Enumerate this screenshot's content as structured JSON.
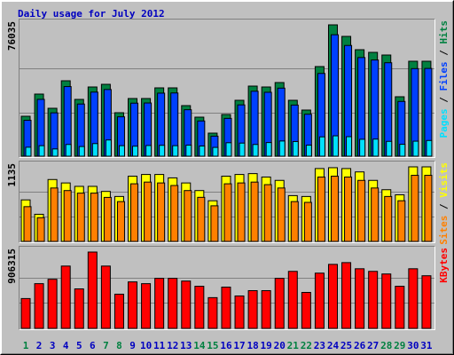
{
  "title": "Daily usage for July 2012",
  "legend_separator": "/",
  "chart_data": [
    {
      "type": "bar",
      "ylim": [
        0,
        76035
      ],
      "yticks": [
        76035
      ],
      "series": [
        {
          "name": "Hits",
          "color": "#008040",
          "values": [
            23118,
            35963,
            27743,
            43669,
            32880,
            40073,
            41614,
            25174,
            33394,
            33394,
            39559,
            39559,
            29284,
            22605,
            13358,
            24147,
            32366,
            40587,
            40073,
            42642,
            32366,
            26715,
            51890,
            76035,
            69357,
            61651,
            60110,
            58569,
            34422,
            54972,
            54972
          ]
        },
        {
          "name": "Files",
          "color": "#0040ff",
          "values": [
            20800,
            32900,
            25100,
            40300,
            30200,
            37100,
            38600,
            22800,
            30700,
            30800,
            36500,
            36600,
            26900,
            20400,
            11600,
            21900,
            29700,
            37600,
            37000,
            39400,
            29600,
            24300,
            47900,
            70300,
            64100,
            57100,
            55700,
            54100,
            31700,
            50700,
            50800
          ]
        },
        {
          "name": "Pages",
          "color": "#00e0ff",
          "values": [
            5200,
            6100,
            4200,
            6800,
            5600,
            7300,
            9400,
            6100,
            5800,
            6200,
            6300,
            6100,
            6400,
            5900,
            5100,
            7800,
            7600,
            6800,
            7900,
            8800,
            8500,
            6400,
            11200,
            11800,
            11300,
            9800,
            9900,
            8600,
            6900,
            8700,
            9100
          ]
        }
      ]
    },
    {
      "type": "bar",
      "ylim": [
        0,
        1135
      ],
      "yticks": [
        1135
      ],
      "series": [
        {
          "name": "Visits",
          "color": "#ffff00",
          "values": [
            632,
            413,
            942,
            890,
            838,
            838,
            761,
            684,
            993,
            1019,
            1019,
            967,
            890,
            774,
            619,
            993,
            1019,
            1032,
            980,
            929,
            697,
            684,
            1109,
            1122,
            1109,
            1058,
            929,
            787,
            709,
            1135,
            1135
          ]
        },
        {
          "name": "Sites",
          "color": "#ff8000",
          "values": [
            529,
            361,
            813,
            774,
            735,
            735,
            670,
            606,
            877,
            903,
            890,
            851,
            774,
            671,
            542,
            877,
            890,
            903,
            864,
            813,
            606,
            594,
            980,
            993,
            980,
            929,
            813,
            684,
            619,
            1006,
            1006
          ]
        }
      ]
    },
    {
      "type": "bar",
      "ylim": [
        0,
        906315
      ],
      "yticks": [
        906315
      ],
      "categories": [
        "1",
        "2",
        "3",
        "4",
        "5",
        "6",
        "7",
        "8",
        "9",
        "10",
        "11",
        "12",
        "13",
        "14",
        "15",
        "16",
        "17",
        "18",
        "19",
        "20",
        "21",
        "22",
        "23",
        "24",
        "25",
        "26",
        "27",
        "28",
        "29",
        "30",
        "31"
      ],
      "label_colors": [
        "#008040",
        "#0000c0",
        "#0000c0",
        "#0000c0",
        "#0000c0",
        "#0000c0",
        "#008040",
        "#008040",
        "#0000c0",
        "#0000c0",
        "#0000c0",
        "#0000c0",
        "#0000c0",
        "#008040",
        "#008040",
        "#0000c0",
        "#0000c0",
        "#0000c0",
        "#0000c0",
        "#0000c0",
        "#008040",
        "#008040",
        "#0000c0",
        "#0000c0",
        "#0000c0",
        "#0000c0",
        "#0000c0",
        "#008040",
        "#008040",
        "#0000c0",
        "#0000c0"
      ],
      "series": [
        {
          "name": "KBytes",
          "color": "#ff0000",
          "values": [
            354190,
            531000,
            583000,
            740000,
            469000,
            906315,
            740000,
            406000,
            552000,
            531000,
            594000,
            594000,
            562000,
            500000,
            365000,
            490000,
            385000,
            448000,
            448000,
            594000,
            677000,
            427000,
            656000,
            760000,
            781000,
            708000,
            677000,
            646000,
            500000,
            708000,
            625000
          ]
        }
      ]
    }
  ]
}
